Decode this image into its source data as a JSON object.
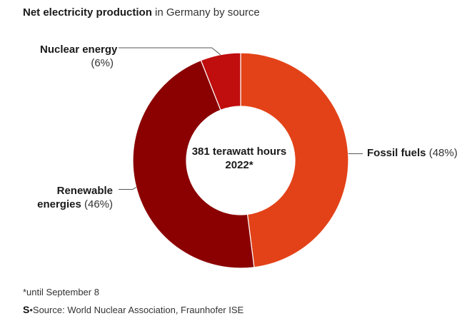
{
  "title": {
    "bold": "Net electricity production",
    "rest": " in Germany by source"
  },
  "center": {
    "line1": "381 terawatt hours",
    "line2": "2022*"
  },
  "footnote": "*until September 8",
  "source": {
    "logo": "S",
    "separator": "•",
    "text": "Source: World Nuclear Association, Fraunhofer ISE"
  },
  "labels": {
    "nuclear": {
      "name": "Nuclear energy",
      "pct": "(6%)"
    },
    "fossil": {
      "name": "Fossil fuels",
      "pct": "(48%)"
    },
    "renewable": {
      "name1": "Renewable",
      "name2": "energies",
      "pct": "(46%)"
    }
  },
  "chart_data": {
    "type": "pie",
    "donut": true,
    "categories": [
      "Fossil fuels",
      "Renewable energies",
      "Nuclear energy"
    ],
    "values": [
      48,
      46,
      6
    ],
    "colors": [
      "#e34218",
      "#8b0000",
      "#c00d0d"
    ],
    "unit": "%"
  }
}
